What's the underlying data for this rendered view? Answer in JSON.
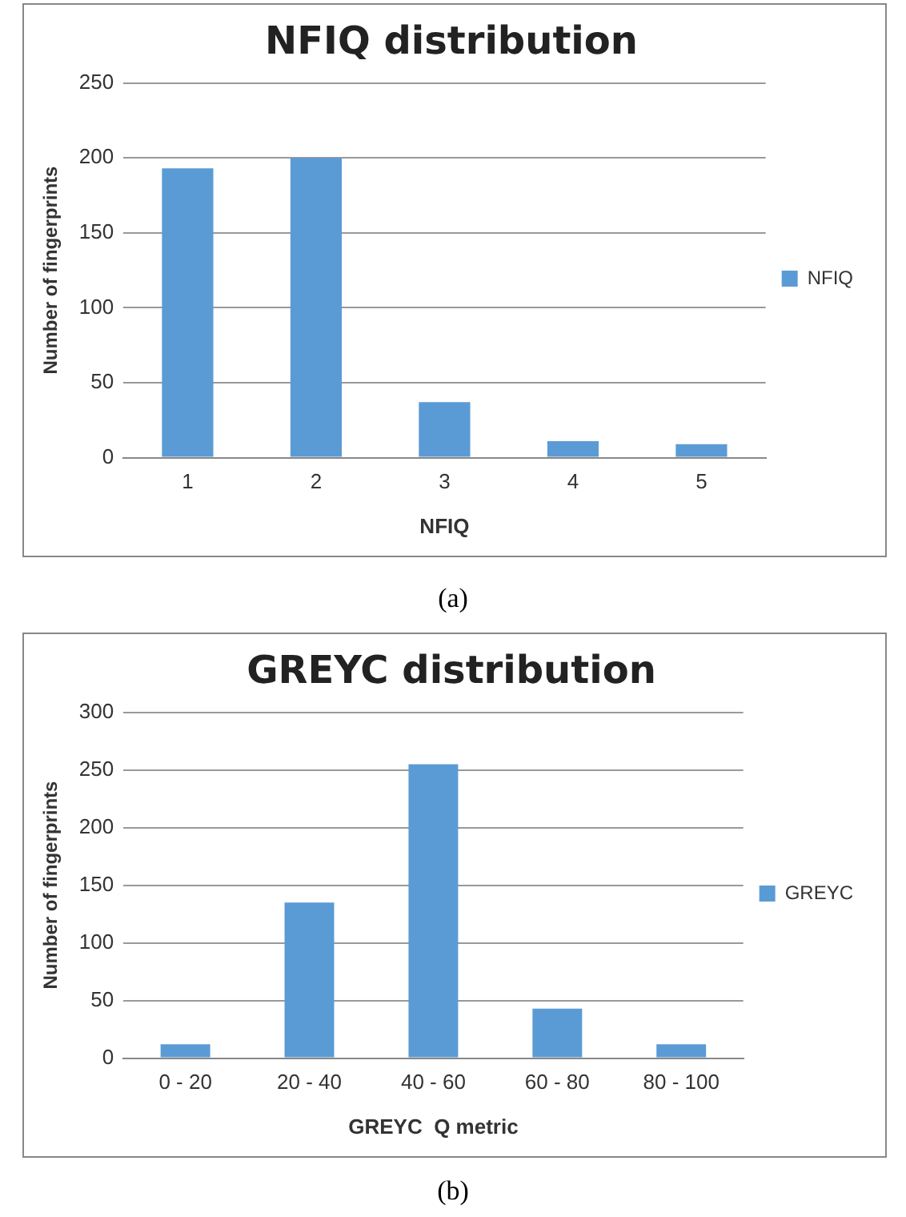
{
  "chart_data": [
    {
      "type": "bar",
      "title": "NFIQ distribution",
      "xlabel": "NFIQ",
      "ylabel": "Number of fingerprints",
      "categories": [
        "1",
        "2",
        "3",
        "4",
        "5"
      ],
      "series": [
        {
          "name": "NFIQ",
          "color": "#5b9bd5",
          "values": [
            193,
            200,
            37,
            11,
            9
          ]
        }
      ],
      "ylim": [
        0,
        250
      ],
      "yticks": [
        0,
        50,
        100,
        150,
        200,
        250
      ],
      "grid": "y",
      "legend": "right",
      "annotations": [
        "(a)"
      ]
    },
    {
      "type": "bar",
      "title": "GREYC distribution",
      "xlabel": "GREYC  Q metric",
      "ylabel": "Number of fingerprints",
      "categories": [
        "0 - 20",
        "20 - 40",
        "40 - 60",
        "60 - 80",
        "80 - 100"
      ],
      "series": [
        {
          "name": "GREYC",
          "color": "#5b9bd5",
          "values": [
            12,
            135,
            255,
            43,
            12
          ]
        }
      ],
      "ylim": [
        0,
        300
      ],
      "yticks": [
        0,
        50,
        100,
        150,
        200,
        250,
        300
      ],
      "grid": "y",
      "legend": "right",
      "annotations": [
        "(b)"
      ]
    }
  ]
}
